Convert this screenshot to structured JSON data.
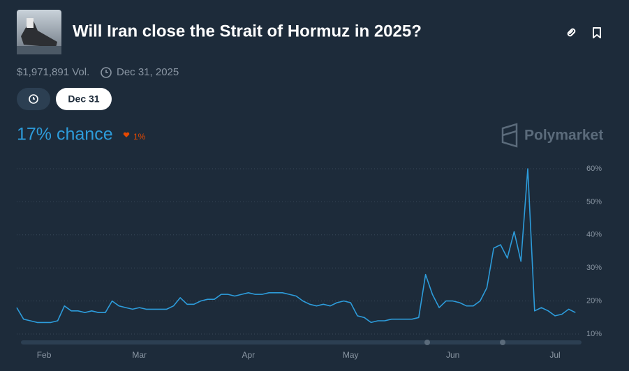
{
  "header": {
    "title": "Will Iran close the Strait of Hormuz in 2025?",
    "volume": "$1,971,891 Vol.",
    "end_date": "Dec 31, 2025",
    "date_button": "Dec 31",
    "chance": "17% chance",
    "change": "1%",
    "brand": "Polymarket"
  },
  "chart_data": {
    "type": "line",
    "color": "#2d9cdb",
    "categories": [
      null,
      null,
      null,
      null,
      "Feb",
      null,
      null,
      null,
      null,
      null,
      null,
      null,
      null,
      null,
      null,
      null,
      null,
      null,
      "Mar",
      null,
      null,
      null,
      null,
      null,
      null,
      null,
      null,
      null,
      null,
      null,
      null,
      null,
      null,
      null,
      "Apr",
      null,
      null,
      null,
      null,
      null,
      null,
      null,
      null,
      null,
      null,
      null,
      null,
      null,
      null,
      "May",
      null,
      null,
      null,
      null,
      null,
      null,
      null,
      null,
      null,
      null,
      null,
      null,
      null,
      null,
      "Jun",
      null,
      null,
      null,
      null,
      null,
      null,
      null,
      null,
      null,
      null,
      null,
      null,
      null,
      null,
      "Jul",
      null,
      null,
      null
    ],
    "values": [
      18,
      14.5,
      14,
      13.5,
      13.5,
      13.5,
      14,
      18.5,
      17,
      17,
      16.5,
      17,
      16.5,
      16.5,
      20,
      18.5,
      18,
      17.5,
      18,
      17.5,
      17.5,
      17.5,
      17.5,
      18.5,
      21,
      19,
      19,
      20,
      20.5,
      20.5,
      22,
      22,
      21.5,
      22,
      22.5,
      22,
      22,
      22.5,
      22.5,
      22.5,
      22,
      21.5,
      20,
      19,
      18.5,
      19,
      18.5,
      19.5,
      20,
      19.5,
      15.5,
      15,
      13.5,
      14,
      14,
      14.5,
      14.5,
      14.5,
      14.5,
      15,
      28,
      22,
      18,
      20,
      20,
      19.5,
      18.5,
      18.5,
      20,
      24,
      36,
      37,
      33,
      41,
      32,
      60,
      17,
      18,
      17,
      15.5,
      16,
      17.5,
      16.5
    ],
    "ylim": [
      10,
      60
    ],
    "yticks": [
      {
        "value": 60,
        "label": "60%"
      },
      {
        "value": 50,
        "label": "50%"
      },
      {
        "value": 40,
        "label": "40%"
      },
      {
        "value": 30,
        "label": "30%"
      },
      {
        "value": 20,
        "label": "20%"
      },
      {
        "value": 10,
        "label": "10%"
      }
    ],
    "grid": true
  }
}
